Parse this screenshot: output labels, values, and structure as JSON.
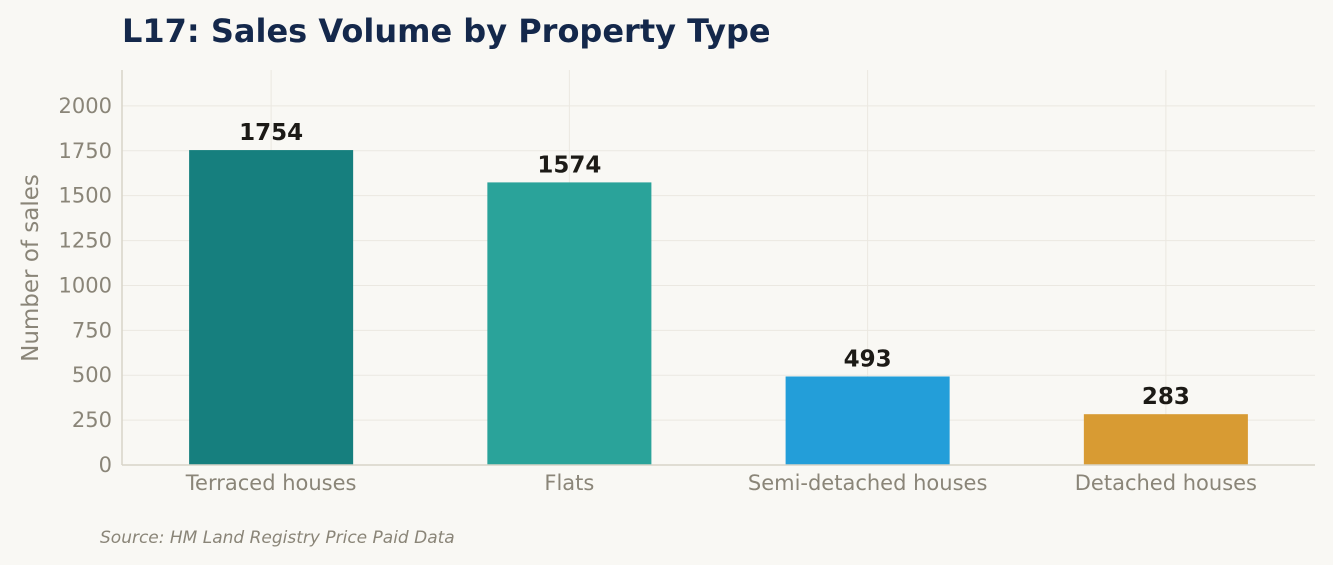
{
  "chart_data": {
    "type": "bar",
    "title": "L17: Sales Volume by Property Type",
    "xlabel": "",
    "ylabel": "Number of sales",
    "categories": [
      "Terraced houses",
      "Flats",
      "Semi-detached houses",
      "Detached houses"
    ],
    "values": [
      1754,
      1574,
      493,
      283
    ],
    "data_labels": [
      "1754",
      "1574",
      "493",
      "283"
    ],
    "colors": [
      "#167f7e",
      "#2aa39a",
      "#239ed9",
      "#d89b33"
    ],
    "ylim": [
      0,
      2200
    ],
    "yticks": [
      0,
      250,
      500,
      750,
      1000,
      1250,
      1500,
      1750,
      2000
    ],
    "ytick_labels": [
      "0",
      "250",
      "500",
      "750",
      "1000",
      "1250",
      "1500",
      "1750",
      "2000"
    ],
    "grid": true,
    "legend": "none"
  },
  "source": "Source: HM Land Registry Price Paid Data"
}
